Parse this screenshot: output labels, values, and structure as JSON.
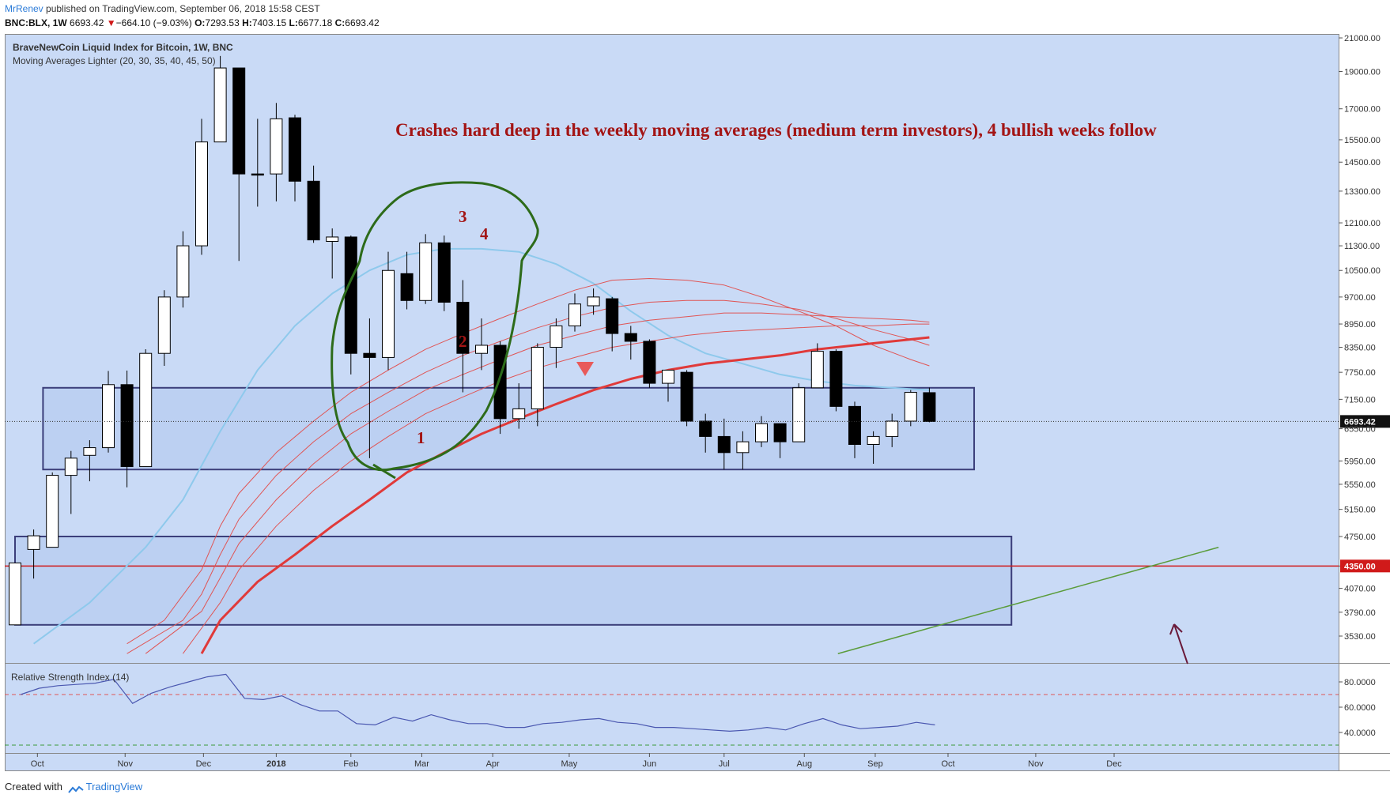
{
  "header": {
    "author": "MrRenev",
    "published_text": "published on TradingView.com, September 06, 2018 15:58 CEST",
    "symbol_line": "BNC:BLX, 1W",
    "last": "6693.42",
    "change_arrow": "▼",
    "change": "−664.10 (−9.03%)",
    "o_label": "O:",
    "o": "7293.53",
    "h_label": "H:",
    "h": "7403.15",
    "l_label": "L:",
    "l": "6677.18",
    "c_label": "C:",
    "c": "6693.42"
  },
  "overlay": {
    "title": "BraveNewCoin Liquid Index for Bitcoin, 1W, BNC",
    "subtitle": "Moving Averages Lighter (20, 30, 35, 40, 45, 50)",
    "rsi_label": "Relative Strength Index (14)"
  },
  "annotation": {
    "text": "Crashes hard deep in the weekly moving averages (medium term investors), 4 bullish weeks follow",
    "week_labels": [
      "1",
      "2",
      "3",
      "4"
    ]
  },
  "footer": {
    "created_with": "Created with",
    "brand": "TradingView"
  },
  "colors": {
    "background": "#c9daf6",
    "bull_candle": "#ffffff",
    "bear_candle": "#000000",
    "ma_main": "#e03a3a",
    "ma_light": "#e05555",
    "ma_blue": "#8ec9ec",
    "zone_border": "#3b3e7a",
    "level_line": "#d01a1a",
    "trendline": "#5a9c3a",
    "circle": "#2d6b1a",
    "rsi_line": "#4a57b0",
    "annotation": "#a31515"
  },
  "chart_data": {
    "type": "candlestick",
    "scale": "log",
    "interval": "1W",
    "y_ticks": [
      21000,
      19000,
      17000,
      15500,
      14500,
      13300,
      12100,
      11300,
      10500,
      9700,
      8950,
      8350,
      7750,
      7150,
      6550,
      5950,
      5550,
      5150,
      4750,
      4350,
      4070,
      3790,
      3530
    ],
    "y_tick_labels": [
      "21000.00",
      "19000.00",
      "17000.00",
      "15500.00",
      "14500.00",
      "13300.00",
      "12100.00",
      "11300.00",
      "10500.00",
      "9700.00",
      "8950.00",
      "8350.00",
      "7750.00",
      "7150.00",
      "6550.00",
      "5950.00",
      "5550.00",
      "5150.00",
      "4750.00",
      "4350.00",
      "4070.00",
      "3790.00",
      "3530.00"
    ],
    "x_labels": [
      "Oct",
      "Nov",
      "Dec",
      "2018",
      "Feb",
      "Mar",
      "Apr",
      "May",
      "Jun",
      "Jul",
      "Aug",
      "Sep",
      "Oct",
      "Nov",
      "Dec"
    ],
    "x_label_weeks": [
      1.2,
      5.9,
      10.1,
      14.0,
      18.0,
      21.8,
      25.6,
      29.7,
      34.0,
      38.0,
      42.3,
      46.1,
      50.0,
      54.7,
      58.9
    ],
    "price_marker": {
      "value": 6693.42,
      "label": "6693.42"
    },
    "level_marker": {
      "value": 4350,
      "label": "4350.00"
    },
    "zones": [
      {
        "from_week": 1.5,
        "to_week": 51.4,
        "low": 5800,
        "high": 7400
      },
      {
        "from_week": 0,
        "to_week": 53.4,
        "low": 3650,
        "high": 4750
      }
    ],
    "trendline": [
      {
        "week": 44.1,
        "value": 3350
      },
      {
        "week": 64.5,
        "value": 4600
      }
    ],
    "candles": [
      {
        "w": 0,
        "o": 3650,
        "h": 4380,
        "l": 3650,
        "c": 4390
      },
      {
        "w": 1,
        "o": 4570,
        "h": 4850,
        "l": 4190,
        "c": 4760
      },
      {
        "w": 2,
        "o": 4600,
        "h": 5750,
        "l": 4600,
        "c": 5700
      },
      {
        "w": 3,
        "o": 5700,
        "h": 6130,
        "l": 5080,
        "c": 6000
      },
      {
        "w": 4,
        "o": 6050,
        "h": 6330,
        "l": 5600,
        "c": 6190
      },
      {
        "w": 5,
        "o": 6190,
        "h": 7780,
        "l": 6100,
        "c": 7470
      },
      {
        "w": 6,
        "o": 7470,
        "h": 7790,
        "l": 5500,
        "c": 5850
      },
      {
        "w": 7,
        "o": 5850,
        "h": 8300,
        "l": 5850,
        "c": 8200
      },
      {
        "w": 8,
        "o": 8200,
        "h": 9900,
        "l": 7900,
        "c": 9700
      },
      {
        "w": 9,
        "o": 9700,
        "h": 11800,
        "l": 9400,
        "c": 11300
      },
      {
        "w": 10,
        "o": 11300,
        "h": 16500,
        "l": 11000,
        "c": 15400
      },
      {
        "w": 11,
        "o": 15400,
        "h": 19900,
        "l": 15400,
        "c": 19200
      },
      {
        "w": 12,
        "o": 19200,
        "h": 19200,
        "l": 10800,
        "c": 14000
      },
      {
        "w": 13,
        "o": 14000,
        "h": 16500,
        "l": 12700,
        "c": 13950
      },
      {
        "w": 14,
        "o": 14000,
        "h": 17300,
        "l": 12900,
        "c": 16500
      },
      {
        "w": 15,
        "o": 16550,
        "h": 16700,
        "l": 12900,
        "c": 13700
      },
      {
        "w": 16,
        "o": 13700,
        "h": 14350,
        "l": 11400,
        "c": 11500
      },
      {
        "w": 17,
        "o": 11450,
        "h": 11900,
        "l": 10250,
        "c": 11600
      },
      {
        "w": 18,
        "o": 11600,
        "h": 11650,
        "l": 7700,
        "c": 8200
      },
      {
        "w": 19,
        "o": 8200,
        "h": 9100,
        "l": 6000,
        "c": 8100
      },
      {
        "w": 20,
        "o": 8100,
        "h": 11100,
        "l": 7800,
        "c": 10500
      },
      {
        "w": 21,
        "o": 10400,
        "h": 11100,
        "l": 9350,
        "c": 9600
      },
      {
        "w": 22,
        "o": 9600,
        "h": 11700,
        "l": 9500,
        "c": 11400
      },
      {
        "w": 23,
        "o": 11400,
        "h": 11650,
        "l": 9300,
        "c": 9550
      },
      {
        "w": 24,
        "o": 9550,
        "h": 10200,
        "l": 7300,
        "c": 8200
      },
      {
        "w": 25,
        "o": 8200,
        "h": 9100,
        "l": 7800,
        "c": 8400
      },
      {
        "w": 26,
        "o": 8400,
        "h": 8500,
        "l": 6450,
        "c": 6750
      },
      {
        "w": 27,
        "o": 6750,
        "h": 7500,
        "l": 6550,
        "c": 6950
      },
      {
        "w": 28,
        "o": 6950,
        "h": 8450,
        "l": 6600,
        "c": 8350
      },
      {
        "w": 29,
        "o": 8350,
        "h": 9100,
        "l": 7850,
        "c": 8900
      },
      {
        "w": 30,
        "o": 8900,
        "h": 9800,
        "l": 8750,
        "c": 9500
      },
      {
        "w": 31,
        "o": 9450,
        "h": 9950,
        "l": 9200,
        "c": 9700
      },
      {
        "w": 32,
        "o": 9650,
        "h": 9700,
        "l": 8250,
        "c": 8700
      },
      {
        "w": 33,
        "o": 8700,
        "h": 8900,
        "l": 8050,
        "c": 8500
      },
      {
        "w": 34,
        "o": 8500,
        "h": 8550,
        "l": 7400,
        "c": 7500
      },
      {
        "w": 35,
        "o": 7500,
        "h": 7800,
        "l": 7100,
        "c": 7800
      },
      {
        "w": 36,
        "o": 7750,
        "h": 7800,
        "l": 6600,
        "c": 6700
      },
      {
        "w": 37,
        "o": 6700,
        "h": 6850,
        "l": 6100,
        "c": 6400
      },
      {
        "w": 38,
        "o": 6400,
        "h": 6750,
        "l": 5800,
        "c": 6100
      },
      {
        "w": 39,
        "o": 6100,
        "h": 6500,
        "l": 5800,
        "c": 6300
      },
      {
        "w": 40,
        "o": 6300,
        "h": 6800,
        "l": 6200,
        "c": 6650
      },
      {
        "w": 41,
        "o": 6650,
        "h": 6650,
        "l": 6000,
        "c": 6300
      },
      {
        "w": 42,
        "o": 6300,
        "h": 7500,
        "l": 6300,
        "c": 7400
      },
      {
        "w": 43,
        "o": 7400,
        "h": 8450,
        "l": 7400,
        "c": 8250
      },
      {
        "w": 44,
        "o": 8250,
        "h": 8300,
        "l": 6900,
        "c": 7000
      },
      {
        "w": 45,
        "o": 7000,
        "h": 7100,
        "l": 6000,
        "c": 6250
      },
      {
        "w": 46,
        "o": 6250,
        "h": 6500,
        "l": 5900,
        "c": 6400
      },
      {
        "w": 47,
        "o": 6400,
        "h": 6850,
        "l": 6200,
        "c": 6700
      },
      {
        "w": 48,
        "o": 6700,
        "h": 7350,
        "l": 6600,
        "c": 7300
      },
      {
        "w": 49,
        "o": 7293.53,
        "h": 7403.15,
        "l": 6677.18,
        "c": 6693.42
      }
    ],
    "moving_averages": [
      {
        "name": "MA 20",
        "color": "#8ec9ec",
        "width": 2,
        "points": [
          [
            1,
            3450
          ],
          [
            4,
            3900
          ],
          [
            7,
            4600
          ],
          [
            9,
            5300
          ],
          [
            11,
            6500
          ],
          [
            13,
            7800
          ],
          [
            15,
            8900
          ],
          [
            17,
            9800
          ],
          [
            19,
            10500
          ],
          [
            21,
            11000
          ],
          [
            23,
            11200
          ],
          [
            25,
            11200
          ],
          [
            27,
            11100
          ],
          [
            29,
            10700
          ],
          [
            31,
            10100
          ],
          [
            33,
            9300
          ],
          [
            35,
            8650
          ],
          [
            37,
            8200
          ],
          [
            39,
            7950
          ],
          [
            41,
            7700
          ],
          [
            43,
            7550
          ],
          [
            45,
            7450
          ],
          [
            47,
            7400
          ],
          [
            49,
            7350
          ]
        ]
      },
      {
        "name": "MA 30",
        "color": "#e05555",
        "width": 1,
        "points": [
          [
            6,
            3450
          ],
          [
            8,
            3700
          ],
          [
            10,
            4300
          ],
          [
            11,
            4900
          ],
          [
            12,
            5400
          ],
          [
            14,
            6100
          ],
          [
            16,
            6700
          ],
          [
            18,
            7300
          ],
          [
            20,
            7800
          ],
          [
            22,
            8300
          ],
          [
            24,
            8700
          ],
          [
            26,
            9100
          ],
          [
            28,
            9500
          ],
          [
            30,
            9900
          ],
          [
            32,
            10200
          ],
          [
            34,
            10250
          ],
          [
            36,
            10200
          ],
          [
            38,
            10050
          ],
          [
            40,
            9700
          ],
          [
            42,
            9300
          ],
          [
            44,
            8900
          ],
          [
            46,
            8400
          ],
          [
            48,
            8050
          ],
          [
            49,
            7900
          ]
        ]
      },
      {
        "name": "MA 35",
        "color": "#e05555",
        "width": 1,
        "points": [
          [
            6,
            3350
          ],
          [
            9,
            3700
          ],
          [
            10,
            4000
          ],
          [
            11,
            4500
          ],
          [
            12,
            5000
          ],
          [
            14,
            5700
          ],
          [
            16,
            6300
          ],
          [
            18,
            6850
          ],
          [
            20,
            7300
          ],
          [
            22,
            7750
          ],
          [
            24,
            8150
          ],
          [
            26,
            8500
          ],
          [
            28,
            8850
          ],
          [
            30,
            9150
          ],
          [
            32,
            9400
          ],
          [
            34,
            9550
          ],
          [
            36,
            9600
          ],
          [
            38,
            9600
          ],
          [
            40,
            9500
          ],
          [
            42,
            9350
          ],
          [
            44,
            9100
          ],
          [
            46,
            8800
          ],
          [
            48,
            8550
          ],
          [
            49,
            8400
          ]
        ]
      },
      {
        "name": "MA 40",
        "color": "#e05555",
        "width": 1,
        "points": [
          [
            7,
            3350
          ],
          [
            10,
            3800
          ],
          [
            11,
            4200
          ],
          [
            12,
            4650
          ],
          [
            14,
            5300
          ],
          [
            16,
            5900
          ],
          [
            18,
            6450
          ],
          [
            20,
            6900
          ],
          [
            22,
            7350
          ],
          [
            24,
            7700
          ],
          [
            26,
            8050
          ],
          [
            28,
            8400
          ],
          [
            30,
            8650
          ],
          [
            32,
            8900
          ],
          [
            34,
            9050
          ],
          [
            36,
            9150
          ],
          [
            38,
            9250
          ],
          [
            40,
            9250
          ],
          [
            42,
            9200
          ],
          [
            44,
            9150
          ],
          [
            46,
            9100
          ],
          [
            48,
            9050
          ],
          [
            49,
            9000
          ]
        ]
      },
      {
        "name": "MA 45",
        "color": "#e05555",
        "width": 1,
        "points": [
          [
            9,
            3350
          ],
          [
            11,
            3900
          ],
          [
            12,
            4300
          ],
          [
            14,
            4900
          ],
          [
            16,
            5450
          ],
          [
            18,
            5950
          ],
          [
            20,
            6400
          ],
          [
            22,
            6850
          ],
          [
            24,
            7200
          ],
          [
            26,
            7550
          ],
          [
            28,
            7850
          ],
          [
            30,
            8100
          ],
          [
            32,
            8350
          ],
          [
            34,
            8500
          ],
          [
            36,
            8650
          ],
          [
            38,
            8750
          ],
          [
            40,
            8800
          ],
          [
            42,
            8850
          ],
          [
            44,
            8900
          ],
          [
            46,
            8900
          ],
          [
            48,
            8950
          ],
          [
            49,
            8950
          ]
        ]
      },
      {
        "name": "MA 50",
        "color": "#e03a3a",
        "width": 3,
        "points": [
          [
            10,
            3350
          ],
          [
            11,
            3700
          ],
          [
            13,
            4150
          ],
          [
            15,
            4500
          ],
          [
            17,
            4900
          ],
          [
            19,
            5300
          ],
          [
            21,
            5750
          ],
          [
            23,
            6100
          ],
          [
            25,
            6450
          ],
          [
            27,
            6750
          ],
          [
            29,
            7050
          ],
          [
            31,
            7350
          ],
          [
            33,
            7600
          ],
          [
            35,
            7800
          ],
          [
            37,
            7950
          ],
          [
            39,
            8050
          ],
          [
            41,
            8150
          ],
          [
            43,
            8300
          ],
          [
            45,
            8400
          ],
          [
            47,
            8500
          ],
          [
            49,
            8600
          ]
        ]
      }
    ],
    "rsi": {
      "label": "Relative Strength Index (14)",
      "ticks": [
        80,
        60,
        40
      ],
      "tick_labels": [
        "80.0000",
        "60.0000",
        "40.0000"
      ],
      "overbought": 70,
      "oversold": 30,
      "values": [
        68,
        69,
        70,
        75,
        77,
        78,
        79,
        82,
        63,
        71,
        76,
        80,
        84,
        86,
        67,
        66,
        69,
        62,
        57,
        57,
        47,
        46,
        52,
        49,
        54,
        50,
        47,
        47,
        44,
        44,
        47,
        48,
        50,
        51,
        48,
        47,
        44,
        44,
        43,
        42,
        41,
        42,
        44,
        42,
        47,
        51,
        46,
        43,
        44,
        45,
        48,
        46
      ]
    }
  }
}
